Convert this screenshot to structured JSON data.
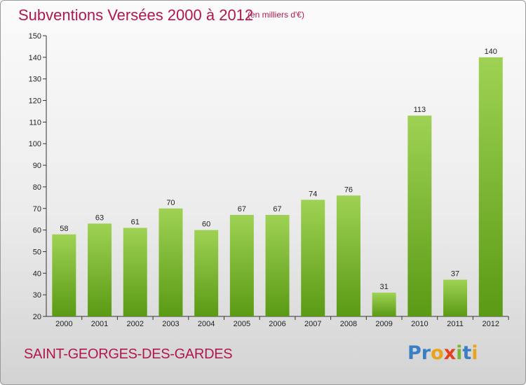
{
  "title": "Subventions Versées 2000 à 2012",
  "subtitle": "(en milliers d'€)",
  "commune": "SAINT-GEORGES-DES-GARDES",
  "logo": {
    "text": "Proxiti",
    "letter_colors": [
      "#3a7fc4",
      "#3a7fc4",
      "#e8a21b",
      "#e8401c",
      "#7ab636",
      "#3a7fc4",
      "#e8a21b"
    ]
  },
  "colors": {
    "bar_top": "#9fd254",
    "bar_bottom": "#5a9a14",
    "text_accent": "#b0174f"
  },
  "chart_data": {
    "type": "bar",
    "categories": [
      "2000",
      "2001",
      "2002",
      "2003",
      "2004",
      "2005",
      "2006",
      "2007",
      "2008",
      "2009",
      "2010",
      "2011",
      "2012"
    ],
    "values": [
      58,
      63,
      61,
      70,
      60,
      67,
      67,
      74,
      76,
      31,
      113,
      37,
      140
    ],
    "title": "Subventions Versées 2000 à 2012",
    "subtitle": "(en milliers d'€)",
    "xlabel": "",
    "ylabel": "",
    "ylim": [
      20,
      150
    ],
    "yticks": [
      20,
      30,
      40,
      50,
      60,
      70,
      80,
      90,
      100,
      110,
      120,
      130,
      140,
      150
    ],
    "grid": false,
    "legend": "none"
  }
}
